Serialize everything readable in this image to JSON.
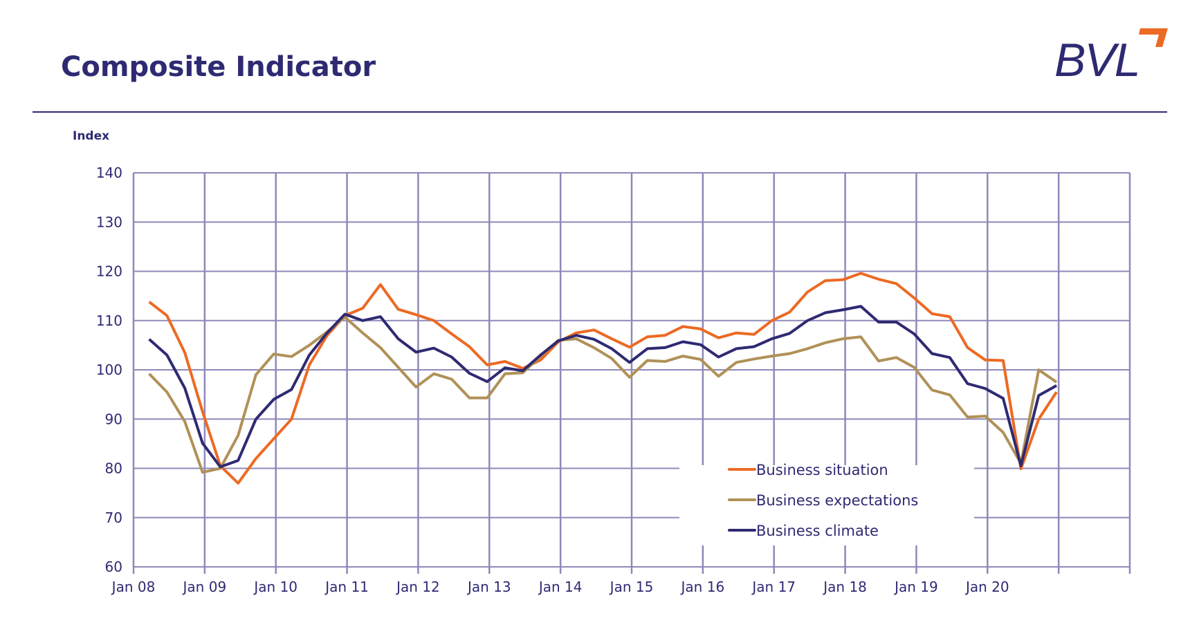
{
  "header": {
    "title": "Composite Indicator",
    "logo_text": "BVL"
  },
  "colors": {
    "brand": "#2e2a72",
    "accent": "#ec6a24",
    "grid": "#8f88b9"
  },
  "chart_data": {
    "type": "line",
    "title": "",
    "ylabel": "Index",
    "xlabel": "",
    "ylim": [
      60,
      140
    ],
    "yticks": [
      60,
      70,
      80,
      90,
      100,
      110,
      120,
      130,
      140
    ],
    "xtick_labels": [
      "Jan 08",
      "Jan 09",
      "Jan 10",
      "Jan 11",
      "Jan 12",
      "Jan 13",
      "Jan 14",
      "Jan 15",
      "Jan 16",
      "Jan 17",
      "Jan 18",
      "Jan 19",
      "Jan 20"
    ],
    "x_frequency": "quarterly",
    "x_range": [
      "2008-Q1",
      "2020-Q4"
    ],
    "grid": true,
    "legend_position": "bottom-center",
    "series": [
      {
        "name": "Business situation",
        "color": "#ec6a24",
        "values": [
          113.8,
          111,
          103.5,
          91.5,
          80.5,
          77,
          82,
          86,
          90,
          101,
          107,
          111,
          112.5,
          117.3,
          112.3,
          111.2,
          110,
          107.3,
          104.7,
          101,
          101.7,
          100.3,
          102,
          105.7,
          107.5,
          108.1,
          106.3,
          104.6,
          106.7,
          107,
          108.8,
          108.3,
          106.5,
          107.5,
          107.2,
          110,
          111.7,
          115.8,
          118.1,
          118.3,
          119.6,
          118.4,
          117.5,
          114.6,
          111.4,
          110.8,
          104.5,
          102,
          101.9,
          79.9,
          90,
          95.5
        ]
      },
      {
        "name": "Business expectations",
        "color": "#b09158",
        "values": [
          99.2,
          95.5,
          89.5,
          79.2,
          80,
          86.7,
          99,
          103.2,
          102.7,
          105,
          107.7,
          110.7,
          107.5,
          104.5,
          100.5,
          96.5,
          99.2,
          98.1,
          94.3,
          94.3,
          99.2,
          99.4,
          102.8,
          106,
          106.3,
          104.5,
          102.3,
          98.5,
          101.9,
          101.7,
          102.8,
          102.1,
          98.7,
          101.5,
          102.2,
          102.8,
          103.3,
          104.3,
          105.5,
          106.3,
          106.7,
          101.8,
          102.5,
          100.5,
          95.9,
          94.9,
          90.4,
          90.6,
          87.3,
          81,
          100,
          97.5
        ]
      },
      {
        "name": "Business climate",
        "color": "#2e2a72",
        "values": [
          106.2,
          103,
          96.3,
          85.1,
          80.3,
          81.6,
          90,
          94,
          96,
          103,
          107.5,
          111.3,
          110,
          110.8,
          106.3,
          103.6,
          104.4,
          102.6,
          99.3,
          97.6,
          100.4,
          99.8,
          103,
          105.9,
          107,
          106.2,
          104.3,
          101.5,
          104.3,
          104.5,
          105.7,
          105.1,
          102.6,
          104.3,
          104.7,
          106.3,
          107.4,
          110,
          111.6,
          112.2,
          112.9,
          109.7,
          109.7,
          107.3,
          103.3,
          102.5,
          97.2,
          96.2,
          94.2,
          80.5,
          94.8,
          96.8
        ]
      }
    ]
  }
}
